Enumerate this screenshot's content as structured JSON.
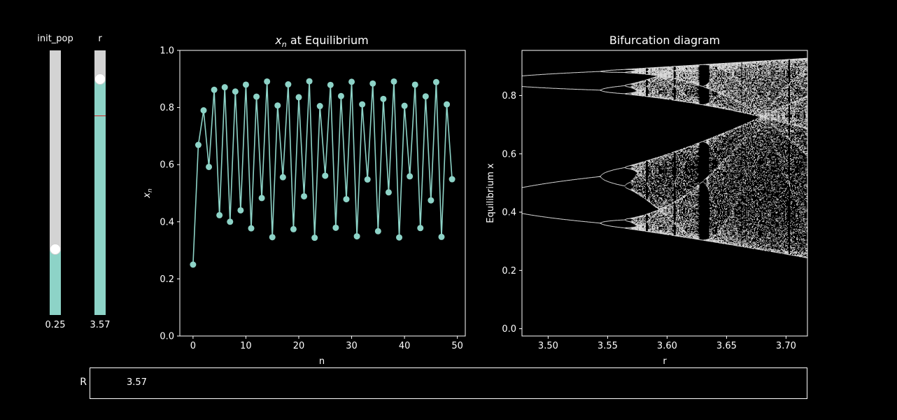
{
  "sliders": [
    {
      "label": "init_pop",
      "value_text": "0.25",
      "fraction": 0.25,
      "color": "#8dd3c7"
    },
    {
      "label": "r",
      "value_text": "3.57",
      "fraction": 0.893,
      "init_fraction": 0.755,
      "color": "#8dd3c7"
    }
  ],
  "textbox": {
    "label": "R",
    "value": "3.57"
  },
  "colors": {
    "background": "#000000",
    "series": "#8dd3c7",
    "track": "#d3d3d3",
    "initial_marker": "#d62728"
  },
  "chart_data": [
    {
      "type": "line",
      "title": "x_n at Equilibrium",
      "title_parts": {
        "base": "x",
        "sub": "n",
        "rest": " at Equilibrium"
      },
      "xlabel": "n",
      "ylabel": "x_n",
      "ylabel_parts": {
        "base": "x",
        "sub": "n"
      },
      "xlim": [
        -2.5,
        51.5
      ],
      "ylim": [
        0,
        1
      ],
      "xticks": [
        0,
        10,
        20,
        30,
        40,
        50
      ],
      "yticks": [
        0.0,
        0.2,
        0.4,
        0.6,
        0.8,
        1.0
      ],
      "xtick_labels": [
        "0",
        "10",
        "20",
        "30",
        "40",
        "50"
      ],
      "ytick_labels": [
        "0.0",
        "0.2",
        "0.4",
        "0.6",
        "0.8",
        "1.0"
      ],
      "markers": true,
      "x": [
        0,
        1,
        2,
        3,
        4,
        5,
        6,
        7,
        8,
        9,
        10,
        11,
        12,
        13,
        14,
        15,
        16,
        17,
        18,
        19,
        20,
        21,
        22,
        23,
        24,
        25,
        26,
        27,
        28,
        29,
        30,
        31,
        32,
        33,
        34,
        35,
        36,
        37,
        38,
        39,
        40,
        41,
        42,
        43,
        44,
        45,
        46,
        47,
        48,
        49
      ],
      "values": [
        0.25,
        0.669,
        0.79,
        0.592,
        0.862,
        0.423,
        0.871,
        0.4,
        0.856,
        0.44,
        0.88,
        0.377,
        0.838,
        0.483,
        0.891,
        0.346,
        0.807,
        0.556,
        0.881,
        0.374,
        0.836,
        0.489,
        0.892,
        0.344,
        0.805,
        0.561,
        0.879,
        0.379,
        0.84,
        0.479,
        0.89,
        0.349,
        0.811,
        0.548,
        0.884,
        0.367,
        0.83,
        0.503,
        0.891,
        0.345,
        0.806,
        0.559,
        0.88,
        0.378,
        0.839,
        0.475,
        0.889,
        0.347,
        0.811,
        0.549
      ]
    },
    {
      "type": "scatter",
      "title": "Bifurcation diagram",
      "xlabel": "r",
      "ylabel": "Equilibrium x",
      "xlim": [
        3.478,
        3.718
      ],
      "ylim": [
        -0.025,
        0.955
      ],
      "xticks": [
        3.5,
        3.55,
        3.6,
        3.65,
        3.7
      ],
      "yticks": [
        0.0,
        0.2,
        0.4,
        0.6,
        0.8
      ],
      "xtick_labels": [
        "3.50",
        "3.55",
        "3.60",
        "3.65",
        "3.70"
      ],
      "ytick_labels": [
        "0.0",
        "0.2",
        "0.4",
        "0.6",
        "0.8"
      ],
      "r_range": [
        3.478,
        3.718
      ],
      "point_color": "#ffffff",
      "note_points": "dense cloud of equilibrium values of the logistic map x -> r x (1 - x)"
    }
  ]
}
